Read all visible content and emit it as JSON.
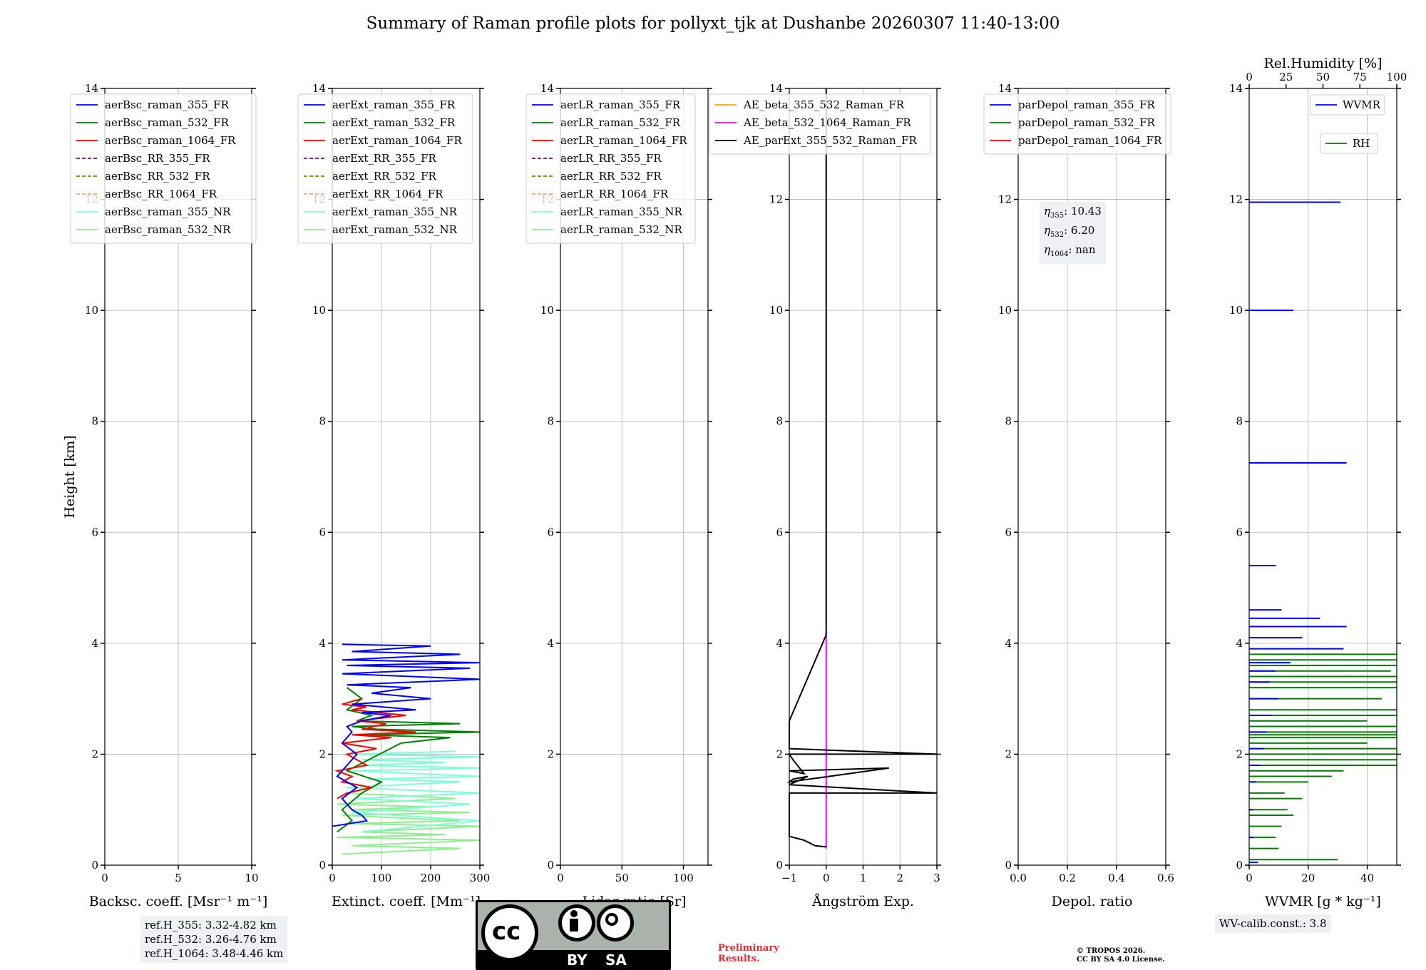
{
  "title": "Summary of Raman profile plots for pollyxt_tjk at Dushanbe 20260307 11:40-13:00",
  "chart_data": [
    {
      "type": "line",
      "id": "bsc",
      "xlabel": "Backsc. coeff. [Msr⁻¹ m⁻¹]",
      "ylabel": "Height [km]",
      "xlim": [
        0,
        10
      ],
      "ylim": [
        0,
        14
      ],
      "xticks": [
        "0",
        "5",
        "10"
      ],
      "xtick_values": [
        0,
        5,
        10
      ],
      "yticks": [
        "0",
        "2",
        "4",
        "6",
        "8",
        "10",
        "12",
        "14"
      ],
      "grid": true,
      "legend": [
        {
          "label": "aerBsc_raman_355_FR",
          "color": "#0000ff",
          "style": "solid"
        },
        {
          "label": "aerBsc_raman_532_FR",
          "color": "#008000",
          "style": "solid"
        },
        {
          "label": "aerBsc_raman_1064_FR",
          "color": "#ff0000",
          "style": "solid"
        },
        {
          "label": "aerBsc_RR_355_FR",
          "color": "#800080",
          "style": "dashed"
        },
        {
          "label": "aerBsc_RR_532_FR",
          "color": "#808000",
          "style": "dashed"
        },
        {
          "label": "aerBsc_RR_1064_FR",
          "color": "#ffa07a",
          "style": "dashed"
        },
        {
          "label": "aerBsc_raman_355_NR",
          "color": "#7fffd4",
          "style": "solid"
        },
        {
          "label": "aerBsc_raman_532_NR",
          "color": "#90ee90",
          "style": "solid"
        }
      ],
      "series": []
    },
    {
      "type": "line",
      "id": "ext",
      "xlabel": "Extinct. coeff. [Mm⁻¹]",
      "xlim": [
        0,
        300
      ],
      "ylim": [
        0,
        14
      ],
      "xticks": [
        "0",
        "100",
        "200",
        "300"
      ],
      "xtick_values": [
        0,
        100,
        200,
        300
      ],
      "yticks": [
        "0",
        "2",
        "4",
        "6",
        "8",
        "10",
        "12",
        "14"
      ],
      "grid": true,
      "legend": [
        {
          "label": "aerExt_raman_355_FR",
          "color": "#0000ff",
          "style": "solid"
        },
        {
          "label": "aerExt_raman_532_FR",
          "color": "#008000",
          "style": "solid"
        },
        {
          "label": "aerExt_raman_1064_FR",
          "color": "#ff0000",
          "style": "solid"
        },
        {
          "label": "aerExt_RR_355_FR",
          "color": "#800080",
          "style": "dashed"
        },
        {
          "label": "aerExt_RR_532_FR",
          "color": "#808000",
          "style": "dashed"
        },
        {
          "label": "aerExt_RR_1064_FR",
          "color": "#ffa07a",
          "style": "dashed"
        },
        {
          "label": "aerExt_raman_355_NR",
          "color": "#7fffd4",
          "style": "solid"
        },
        {
          "label": "aerExt_raman_532_NR",
          "color": "#90ee90",
          "style": "solid"
        }
      ],
      "series": [
        {
          "name": "aerExt_raman_532_NR",
          "color": "#90ee90",
          "x": [
            20,
            260,
            40,
            300,
            10,
            230,
            60,
            300,
            30,
            260,
            20,
            280,
            40,
            200,
            10,
            250,
            30
          ],
          "y": [
            0.2,
            0.3,
            0.35,
            0.45,
            0.5,
            0.55,
            0.6,
            0.7,
            0.75,
            0.8,
            0.9,
            0.95,
            1.0,
            1.05,
            1.1,
            1.2,
            1.3
          ]
        },
        {
          "name": "aerExt_raman_355_NR",
          "color": "#7fffd4",
          "x": [
            60,
            300,
            40,
            280,
            50,
            300,
            30,
            260,
            70,
            300,
            40,
            300,
            50,
            230,
            60,
            300,
            40,
            250
          ],
          "y": [
            0.6,
            0.8,
            0.95,
            1.1,
            1.2,
            1.3,
            1.4,
            1.5,
            1.55,
            1.6,
            1.7,
            1.75,
            1.8,
            1.85,
            1.9,
            1.95,
            2.0,
            2.05
          ]
        },
        {
          "name": "aerExt_raman_532_FR",
          "color": "#008000",
          "x": [
            10,
            40,
            20,
            60,
            100,
            30,
            140,
            240,
            60,
            300,
            90,
            40,
            260,
            50,
            80,
            30,
            60,
            30
          ],
          "y": [
            0.6,
            0.8,
            1.0,
            1.3,
            1.5,
            1.7,
            2.2,
            2.3,
            2.35,
            2.4,
            2.45,
            2.5,
            2.55,
            2.6,
            2.7,
            2.8,
            3.0,
            3.2
          ]
        },
        {
          "name": "aerExt_raman_1064_FR",
          "color": "#ff0000",
          "x": [
            10,
            30,
            80,
            20,
            40,
            10,
            70,
            30,
            90,
            20,
            120,
            40,
            170,
            60,
            110,
            50,
            150,
            40,
            70,
            20,
            60
          ],
          "y": [
            1.2,
            1.3,
            1.4,
            1.5,
            1.6,
            1.7,
            1.8,
            2.0,
            2.1,
            2.2,
            2.3,
            2.35,
            2.4,
            2.45,
            2.55,
            2.6,
            2.7,
            2.8,
            2.85,
            2.9,
            3.0
          ]
        },
        {
          "name": "aerExt_raman_355_FR",
          "color": "#0000ff",
          "x": [
            0,
            70,
            60,
            40,
            20,
            50,
            10,
            30,
            50,
            20,
            40,
            30,
            60,
            120,
            60,
            170,
            40,
            200,
            80,
            160,
            30,
            300,
            20,
            280,
            30,
            300,
            20,
            260,
            40,
            200,
            20
          ],
          "y": [
            0.7,
            0.8,
            0.9,
            1.0,
            1.2,
            1.4,
            1.6,
            1.8,
            2.0,
            2.2,
            2.4,
            2.5,
            2.6,
            2.7,
            2.75,
            2.8,
            2.9,
            3.0,
            3.1,
            3.2,
            3.25,
            3.35,
            3.45,
            3.55,
            3.6,
            3.65,
            3.7,
            3.8,
            3.85,
            3.95,
            3.98
          ]
        }
      ]
    },
    {
      "type": "line",
      "id": "lr",
      "xlabel": "Lidar ratio [Sr]",
      "xlim": [
        0,
        120
      ],
      "ylim": [
        0,
        14
      ],
      "xticks": [
        "0",
        "50",
        "100"
      ],
      "xtick_values": [
        0,
        50,
        100
      ],
      "yticks": [
        "0",
        "2",
        "4",
        "6",
        "8",
        "10",
        "12",
        "14"
      ],
      "grid": true,
      "legend": [
        {
          "label": "aerLR_raman_355_FR",
          "color": "#0000ff",
          "style": "solid"
        },
        {
          "label": "aerLR_raman_532_FR",
          "color": "#008000",
          "style": "solid"
        },
        {
          "label": "aerLR_raman_1064_FR",
          "color": "#ff0000",
          "style": "solid"
        },
        {
          "label": "aerLR_RR_355_FR",
          "color": "#800080",
          "style": "dashed"
        },
        {
          "label": "aerLR_RR_532_FR",
          "color": "#808000",
          "style": "dashed"
        },
        {
          "label": "aerLR_RR_1064_FR",
          "color": "#ffa07a",
          "style": "dashed"
        },
        {
          "label": "aerLR_raman_355_NR",
          "color": "#7fffd4",
          "style": "solid"
        },
        {
          "label": "aerLR_raman_532_NR",
          "color": "#90ee90",
          "style": "solid"
        }
      ],
      "series": []
    },
    {
      "type": "line",
      "id": "ae",
      "xlabel": "Ångström Exp.",
      "xlim": [
        -1,
        3
      ],
      "ylim": [
        0,
        14
      ],
      "xticks": [
        "−1",
        "0",
        "1",
        "2",
        "3"
      ],
      "xtick_values": [
        -1,
        0,
        1,
        2,
        3
      ],
      "yticks": [
        "0",
        "2",
        "4",
        "6",
        "8",
        "10",
        "12",
        "14"
      ],
      "grid": true,
      "legend": [
        {
          "label": "AE_beta_355_532_Raman_FR",
          "color": "#ffa500",
          "style": "solid"
        },
        {
          "label": "AE_beta_532_1064_Raman_FR",
          "color": "#ff00ff",
          "style": "solid"
        },
        {
          "label": "AE_parExt_355_532_Raman_FR",
          "color": "#000000",
          "style": "solid"
        }
      ],
      "series": [
        {
          "name": "AE_beta_532_1064_Raman_FR",
          "color": "#ff00ff",
          "x": [
            0,
            0
          ],
          "y": [
            0.3,
            4.2
          ]
        },
        {
          "name": "AE_parExt_355_532_Raman_FR",
          "color": "#000000",
          "x": [
            0,
            -0.3,
            -0.6,
            -1.0,
            -1.0,
            3.0,
            -1.0,
            -0.5,
            -0.9,
            -1.0,
            1.7,
            -1.0,
            -0.6,
            -0.9,
            -1.0,
            3.0,
            -1.0,
            -1.0,
            0,
            0
          ],
          "y": [
            0.33,
            0.35,
            0.45,
            0.52,
            1.3,
            1.3,
            1.45,
            1.6,
            1.55,
            1.5,
            1.75,
            1.7,
            1.65,
            1.9,
            2.0,
            2.0,
            2.1,
            2.6,
            4.15,
            14
          ]
        }
      ]
    },
    {
      "type": "line",
      "id": "depol",
      "xlabel": "Depol. ratio",
      "xlim": [
        0,
        0.6
      ],
      "ylim": [
        0,
        14
      ],
      "xticks": [
        "0.0",
        "0.2",
        "0.4",
        "0.6"
      ],
      "xtick_values": [
        0,
        0.2,
        0.4,
        0.6
      ],
      "yticks": [
        "0",
        "2",
        "4",
        "6",
        "8",
        "10",
        "12",
        "14"
      ],
      "grid": true,
      "legend": [
        {
          "label": "parDepol_raman_355_FR",
          "color": "#0000ff",
          "style": "solid"
        },
        {
          "label": "parDepol_raman_532_FR",
          "color": "#008000",
          "style": "solid"
        },
        {
          "label": "parDepol_raman_1064_FR",
          "color": "#ff0000",
          "style": "solid"
        }
      ],
      "series": []
    },
    {
      "type": "line",
      "id": "wv",
      "xlabel": "WVMR [g * kg⁻¹]",
      "xlim": [
        0,
        50
      ],
      "ylim": [
        0,
        14
      ],
      "xticks": [
        "0",
        "20",
        "40"
      ],
      "xtick_values": [
        0,
        20,
        40
      ],
      "yticks": [
        "0",
        "2",
        "4",
        "6",
        "8",
        "10",
        "12",
        "14"
      ],
      "top_xlabel": "Rel.Humidity [%]",
      "top_xlim": [
        0,
        100
      ],
      "top_xticks": [
        "0",
        "25",
        "50",
        "75",
        "100"
      ],
      "top_xtick_values": [
        0,
        25,
        50,
        75,
        100
      ],
      "grid": true,
      "legend": [
        {
          "label": "WVMR",
          "color": "#0000ff",
          "style": "solid"
        },
        {
          "label": "RH",
          "color": "#008000",
          "style": "solid"
        }
      ],
      "series": [
        {
          "name": "RH",
          "color": "#008000",
          "segments": [
            [
              0.1,
              60
            ],
            [
              0.3,
              20
            ],
            [
              0.5,
              18
            ],
            [
              0.7,
              22
            ],
            [
              0.9,
              30
            ],
            [
              1.0,
              26
            ],
            [
              1.2,
              36
            ],
            [
              1.3,
              24
            ],
            [
              1.5,
              40
            ],
            [
              1.6,
              56
            ],
            [
              1.7,
              64
            ],
            [
              1.8,
              100
            ],
            [
              1.9,
              100
            ],
            [
              2.0,
              100
            ],
            [
              2.1,
              100
            ],
            [
              2.2,
              80
            ],
            [
              2.3,
              100
            ],
            [
              2.35,
              100
            ],
            [
              2.4,
              100
            ],
            [
              2.5,
              100
            ],
            [
              2.6,
              80
            ],
            [
              2.7,
              100
            ],
            [
              2.8,
              100
            ],
            [
              3.0,
              90
            ],
            [
              3.2,
              100
            ],
            [
              3.3,
              100
            ],
            [
              3.4,
              100
            ],
            [
              3.5,
              96
            ],
            [
              3.6,
              100
            ],
            [
              3.7,
              100
            ],
            [
              3.8,
              100
            ]
          ]
        },
        {
          "name": "WVMR",
          "color": "#0000ff",
          "segments": [
            [
              0.05,
              3
            ],
            [
              0.5,
              1.5
            ],
            [
              1.0,
              1.2
            ],
            [
              1.5,
              2.5
            ],
            [
              1.8,
              4
            ],
            [
              2.1,
              5
            ],
            [
              2.4,
              6
            ],
            [
              2.7,
              8
            ],
            [
              3.0,
              10
            ],
            [
              3.3,
              7
            ],
            [
              3.5,
              9
            ],
            [
              3.65,
              14
            ],
            [
              3.9,
              32
            ],
            [
              4.1,
              18
            ],
            [
              4.3,
              33
            ],
            [
              4.45,
              24
            ],
            [
              4.6,
              11
            ],
            [
              5.4,
              9
            ],
            [
              7.25,
              33
            ],
            [
              10.0,
              15
            ],
            [
              11.95,
              31
            ]
          ]
        }
      ]
    }
  ],
  "eta": {
    "e355_label": "η",
    "e355_sub": "355",
    "e355_val": ": 10.43",
    "e532_label": "η",
    "e532_sub": "532",
    "e532_val": ": 6.20",
    "e1064_label": "η",
    "e1064_sub": "1064",
    "e1064_val": ": nan"
  },
  "refh": {
    "line1": "ref.H_355: 3.32-4.82 km",
    "line2": "ref.H_532: 3.26-4.76 km",
    "line3": "ref.H_1064: 3.48-4.46 km"
  },
  "wvcalib": "WV-calib.const.: 3.8",
  "preliminary": {
    "line1": "Preliminary",
    "line2": "Results."
  },
  "copyright": {
    "line1": "© TROPOS 2026.",
    "line2": "CC BY SA 4.0 License."
  },
  "license_badge": {
    "cc": "cc",
    "by": "BY",
    "sa": "SA"
  }
}
